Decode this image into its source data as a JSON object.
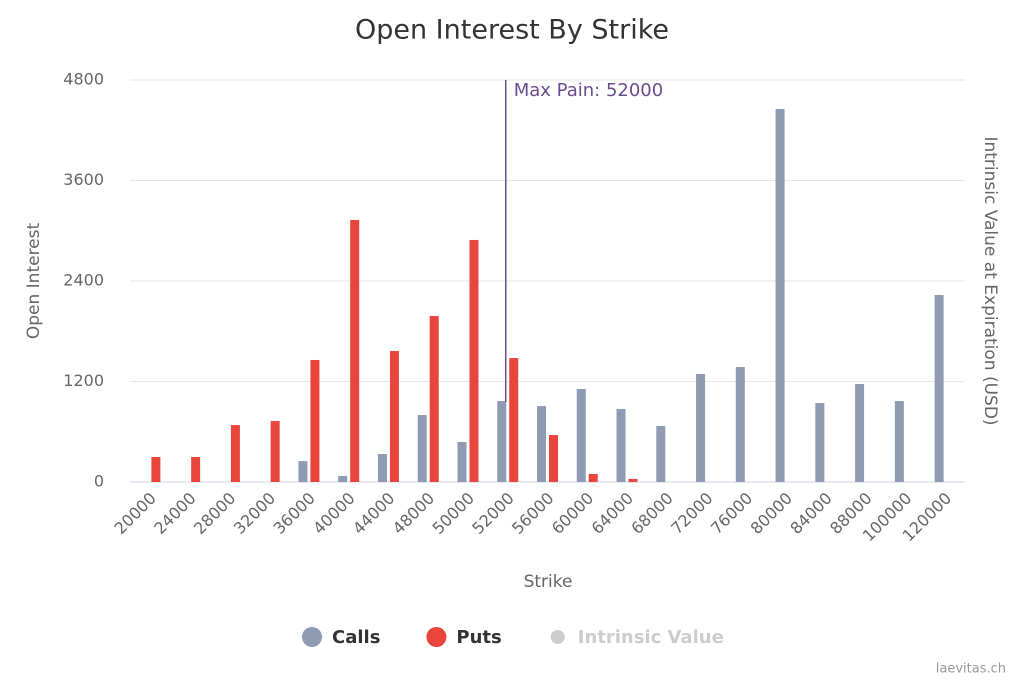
{
  "chart_data": {
    "type": "bar",
    "title": "Open Interest By Strike",
    "x_label": "Strike",
    "y_label": "Open Interest",
    "y2_label": "Intrinsic Value at Expiration (USD)",
    "credits": "laevitas.ch",
    "categories": [
      "20000",
      "24000",
      "28000",
      "32000",
      "36000",
      "40000",
      "44000",
      "48000",
      "50000",
      "52000",
      "56000",
      "60000",
      "64000",
      "68000",
      "72000",
      "76000",
      "80000",
      "84000",
      "88000",
      "100000",
      "120000"
    ],
    "series": [
      {
        "name": "Calls",
        "color": "#8f9bb3",
        "values": [
          0,
          0,
          0,
          0,
          250,
          72,
          334,
          800,
          478,
          967,
          907,
          1110,
          872,
          669,
          1290,
          1373,
          4454,
          943,
          1170,
          967,
          2233
        ]
      },
      {
        "name": "Puts",
        "color": "#e8453c",
        "values": [
          299,
          299,
          680,
          728,
          1457,
          3128,
          1564,
          1982,
          2890,
          1480,
          561,
          96,
          36,
          0,
          0,
          0,
          0,
          0,
          0,
          0,
          0
        ]
      },
      {
        "name": "Intrinsic Value",
        "color": "#cccccc",
        "visible": false,
        "values": [
          null,
          null,
          null,
          null,
          null,
          null,
          null,
          null,
          null,
          null,
          null,
          null,
          null,
          null,
          null,
          null,
          null,
          null,
          null,
          null,
          null
        ]
      }
    ],
    "annotation": {
      "text": "Max Pain: 52000",
      "x": "52000",
      "color": "#6b4c8e"
    },
    "ylim": [
      0,
      4800
    ],
    "yticks": [
      0,
      1200,
      2400,
      3600,
      4800
    ],
    "grid": true,
    "legend": "bottom"
  }
}
